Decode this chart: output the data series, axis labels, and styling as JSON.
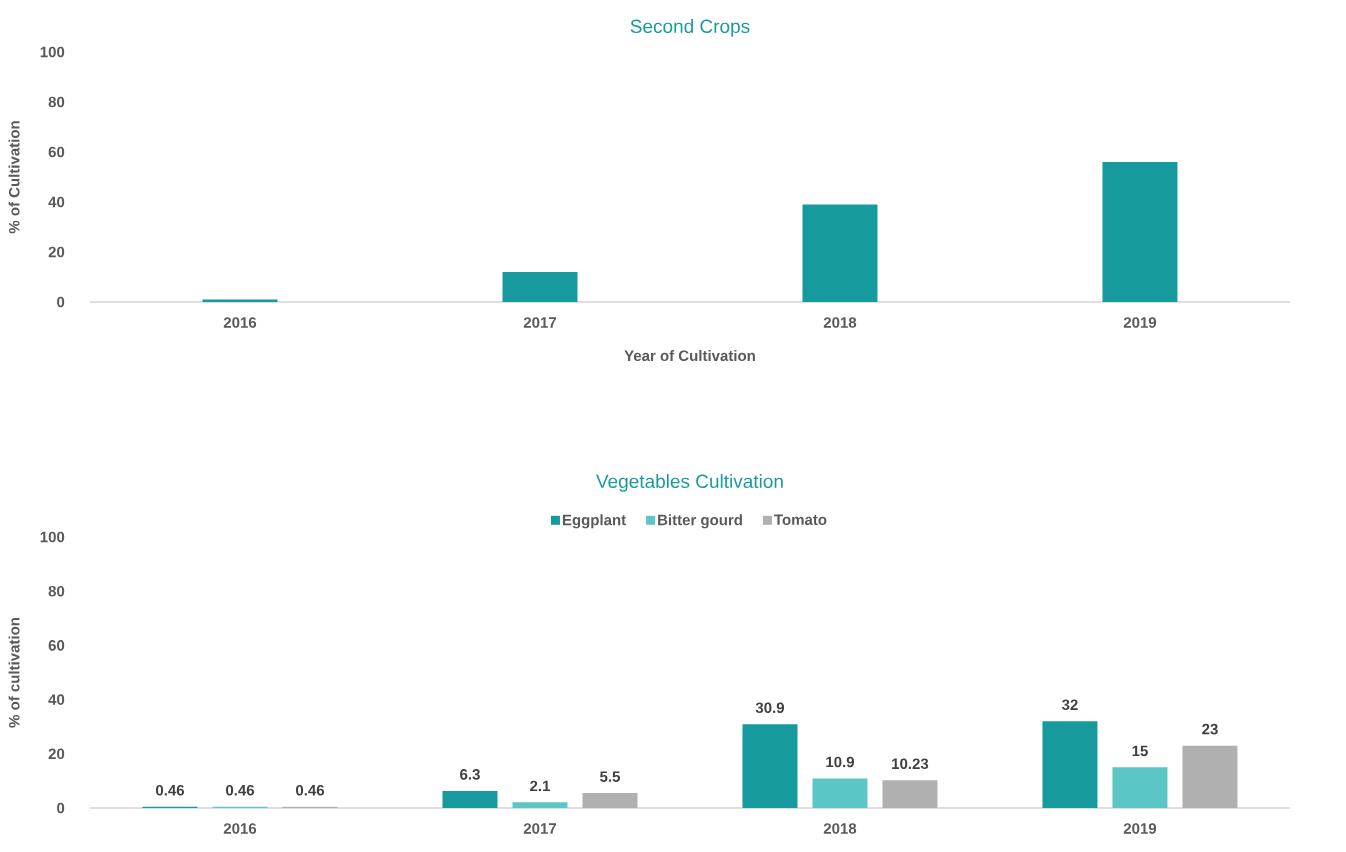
{
  "chart_data": [
    {
      "type": "bar",
      "title": "Second Crops",
      "xlabel": "Year of Cultivation",
      "ylabel": "% of Cultivation",
      "categories": [
        "2016",
        "2017",
        "2018",
        "2019"
      ],
      "values": [
        1,
        12,
        39,
        56
      ],
      "color": "#169a9e",
      "ylim": [
        0,
        100
      ],
      "yticks": [
        0,
        20,
        40,
        60,
        80,
        100
      ],
      "grid": false,
      "legend": false
    },
    {
      "type": "bar",
      "title": "Vegetables Cultivation",
      "ylabel": "% of cultivation",
      "categories": [
        "2016",
        "2017",
        "2018",
        "2019"
      ],
      "series": [
        {
          "name": "Eggplant",
          "color": "#169a9e",
          "values": [
            0.46,
            6.3,
            30.9,
            32
          ]
        },
        {
          "name": "Bitter gourd",
          "color": "#5cc6c6",
          "values": [
            0.46,
            2.1,
            10.9,
            15
          ]
        },
        {
          "name": "Tomato",
          "color": "#b0b0b0",
          "values": [
            0.46,
            5.5,
            10.23,
            23
          ]
        }
      ],
      "ylim": [
        0,
        100
      ],
      "yticks": [
        0,
        20,
        40,
        60,
        80,
        100
      ],
      "grid": false,
      "legend": "top",
      "data_labels": true
    }
  ]
}
